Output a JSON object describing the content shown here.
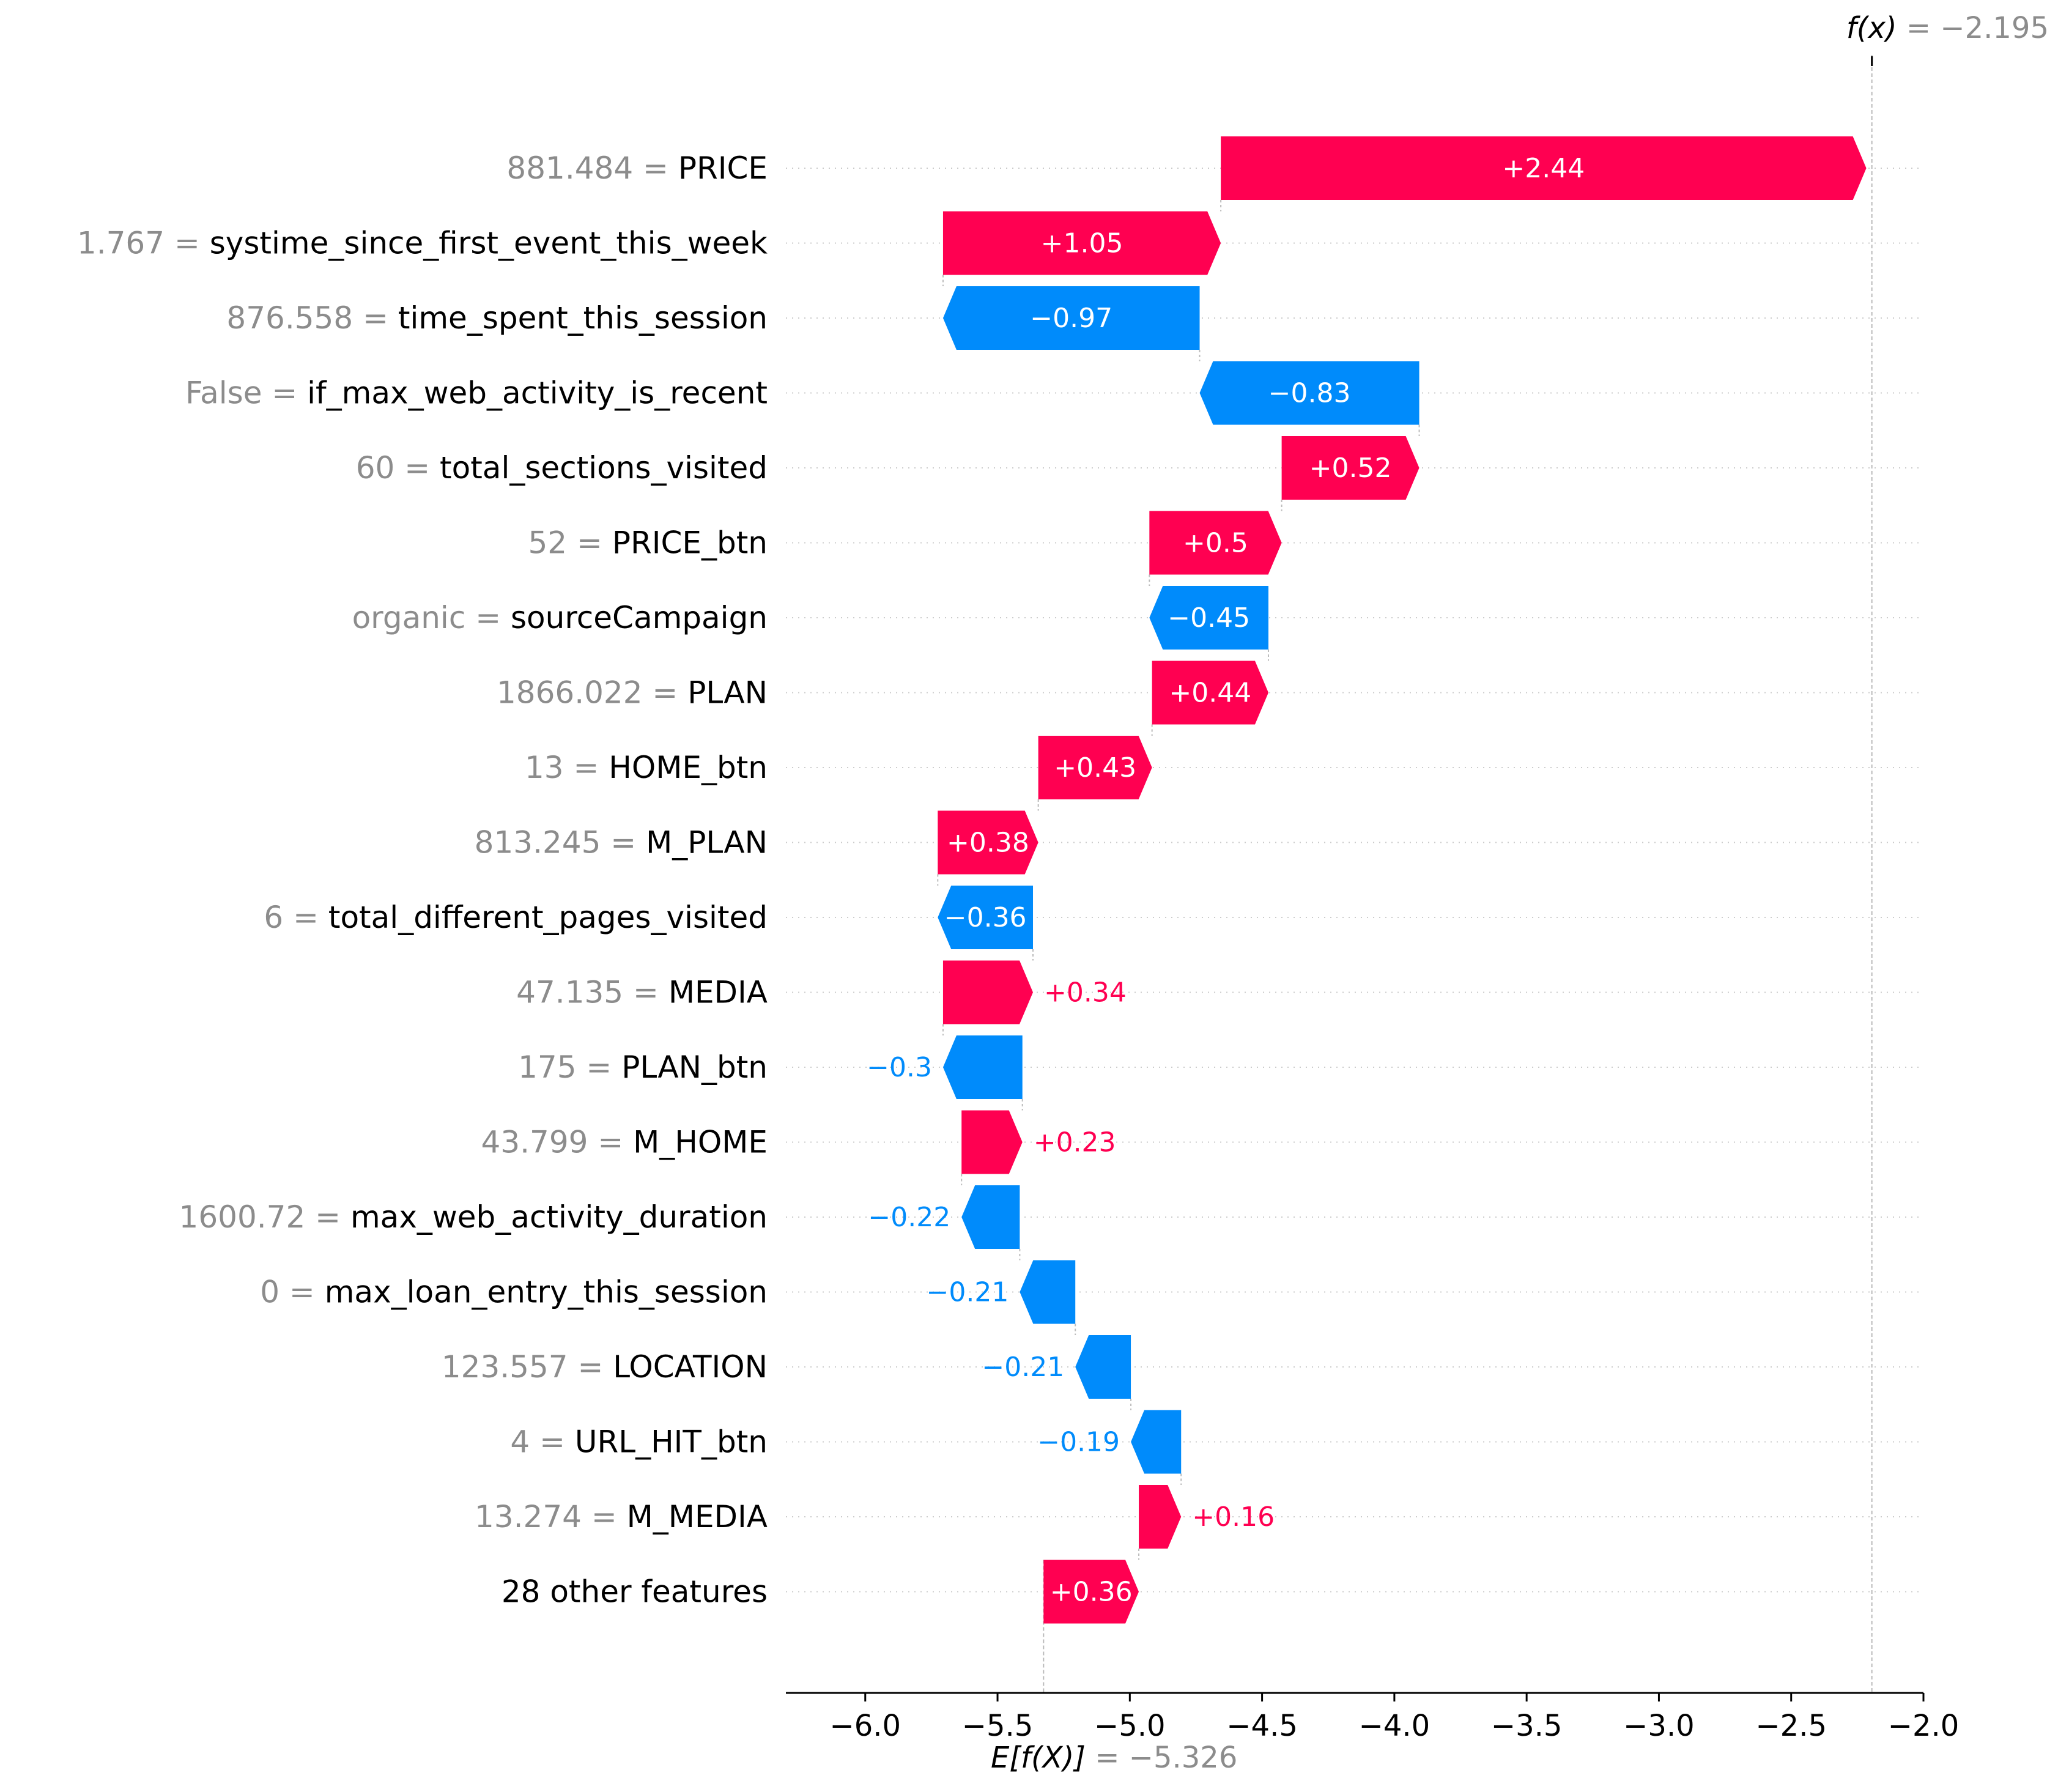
{
  "chart_data": {
    "type": "waterfall",
    "fx_label": "f(x)",
    "fx_value": "−2.195",
    "fx": -2.195,
    "base_label": "E[f(X)]",
    "base_value": "−5.326",
    "base": -5.326,
    "xlim": [
      -6.3,
      -2.0
    ],
    "xticks": [
      "−6.0",
      "−5.5",
      "−5.0",
      "−4.5",
      "−4.0",
      "−3.5",
      "−3.0",
      "−2.5",
      "−2.0"
    ],
    "xtick_values": [
      -6.0,
      -5.5,
      -5.0,
      -4.5,
      -4.0,
      -3.5,
      -3.0,
      -2.5,
      -2.0
    ],
    "colors": {
      "positive": "#ff0051",
      "negative": "#008bfb",
      "value_text": "#8c8c8c",
      "gridline": "#cccccc"
    },
    "features": [
      {
        "value": "881.484",
        "name": "PRICE",
        "label": "+2.44",
        "shap": 2.44
      },
      {
        "value": "1.767",
        "name": "systime_since_first_event_this_week",
        "label": "+1.05",
        "shap": 1.05
      },
      {
        "value": "876.558",
        "name": "time_spent_this_session",
        "label": "−0.97",
        "shap": -0.97
      },
      {
        "value": "False",
        "name": "if_max_web_activity_is_recent",
        "label": "−0.83",
        "shap": -0.83
      },
      {
        "value": "60",
        "name": "total_sections_visited",
        "label": "+0.52",
        "shap": 0.52
      },
      {
        "value": "52",
        "name": "PRICE_btn",
        "label": "+0.5",
        "shap": 0.5
      },
      {
        "value": "organic",
        "name": "sourceCampaign",
        "label": "−0.45",
        "shap": -0.45
      },
      {
        "value": "1866.022",
        "name": "PLAN",
        "label": "+0.44",
        "shap": 0.44
      },
      {
        "value": "13",
        "name": "HOME_btn",
        "label": "+0.43",
        "shap": 0.43
      },
      {
        "value": "813.245",
        "name": "M_PLAN",
        "label": "+0.38",
        "shap": 0.38
      },
      {
        "value": "6",
        "name": "total_different_pages_visited",
        "label": "−0.36",
        "shap": -0.36
      },
      {
        "value": "47.135",
        "name": "MEDIA",
        "label": "+0.34",
        "shap": 0.34
      },
      {
        "value": "175",
        "name": "PLAN_btn",
        "label": "−0.3",
        "shap": -0.3
      },
      {
        "value": "43.799",
        "name": "M_HOME",
        "label": "+0.23",
        "shap": 0.23
      },
      {
        "value": "1600.72",
        "name": "max_web_activity_duration",
        "label": "−0.22",
        "shap": -0.22
      },
      {
        "value": "0",
        "name": "max_loan_entry_this_session",
        "label": "−0.21",
        "shap": -0.21
      },
      {
        "value": "123.557",
        "name": "LOCATION",
        "label": "−0.21",
        "shap": -0.21
      },
      {
        "value": "4",
        "name": "URL_HIT_btn",
        "label": "−0.19",
        "shap": -0.19
      },
      {
        "value": "13.274",
        "name": "M_MEDIA",
        "label": "+0.16",
        "shap": 0.16
      },
      {
        "value": "",
        "name": "28 other features",
        "label": "+0.36",
        "shap": 0.36
      }
    ]
  }
}
